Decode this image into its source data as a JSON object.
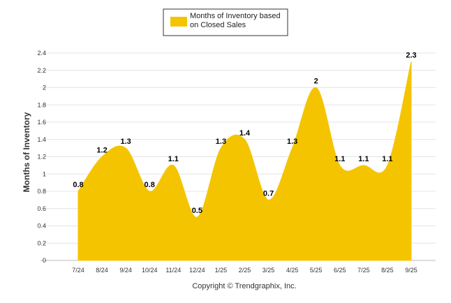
{
  "chart_data": {
    "type": "area",
    "categories": [
      "7/24",
      "8/24",
      "9/24",
      "10/24",
      "11/24",
      "12/24",
      "1/25",
      "2/25",
      "3/25",
      "4/25",
      "5/25",
      "6/25",
      "7/25",
      "8/25",
      "9/25"
    ],
    "series": [
      {
        "name": "Months of Inventory based on Closed Sales",
        "values": [
          0.8,
          1.2,
          1.3,
          0.8,
          1.1,
          0.5,
          1.3,
          1.4,
          0.7,
          1.3,
          2,
          1.1,
          1.1,
          1.1,
          2.3
        ],
        "labels": [
          "0.8",
          "1.2",
          "1.3",
          "0.8",
          "1.1",
          "0.5",
          "1.3",
          "1.4",
          "0.7",
          "1.3",
          "2",
          "1.1",
          "1.1",
          "1.1",
          "2.3"
        ],
        "color": "#F5C400"
      }
    ],
    "legend_lines": [
      "Months of Inventory based",
      "on Closed Sales"
    ],
    "ylabel": "Months of Inventory",
    "ylim": [
      0,
      2.4
    ],
    "yticks": [
      "0",
      "0.2",
      "0.4",
      "0.6",
      "0.8",
      "1",
      "1.2",
      "1.4",
      "1.6",
      "1.8",
      "2",
      "2.2",
      "2.4"
    ],
    "grid": true,
    "legend_position": "top-center"
  },
  "footer": "Copyright © Trendgraphix, Inc."
}
